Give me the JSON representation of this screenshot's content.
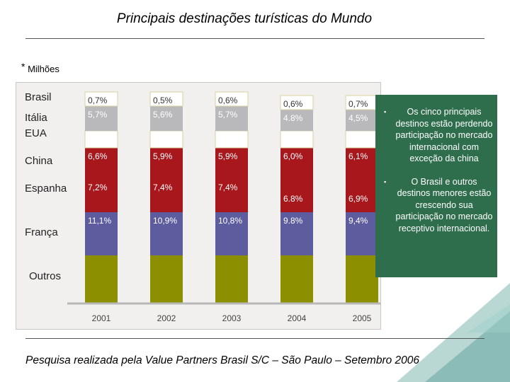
{
  "title": "Principais destinações turísticas do Mundo",
  "unit_note": {
    "star": "*",
    "text": "Milhões"
  },
  "colors": {
    "outros": "#8b8f00",
    "franca": "#5d5c9e",
    "espanha": "#a8171c",
    "china": "#a8171c",
    "eua": "#ffffff",
    "italia": "#b9b9bb",
    "brasil": "#ffffff",
    "callout_bg": "#2f6e4c",
    "axis": "#b7b7b7"
  },
  "chart_data": {
    "type": "bar",
    "stacked": true,
    "title": "Principais destinações turísticas do Mundo",
    "categories": [
      "2001",
      "2002",
      "2003",
      "2004",
      "2005"
    ],
    "series": [
      {
        "name": "Outros",
        "values": [
          null,
          null,
          null,
          null,
          null
        ]
      },
      {
        "name": "França",
        "values": [
          11.1,
          10.9,
          10.8,
          9.8,
          9.4
        ],
        "labels": [
          "11,1%",
          "10,9%",
          "10,8%",
          "9.8%",
          "9,4%"
        ]
      },
      {
        "name": "Espanha",
        "values": [
          7.2,
          7.4,
          7.4,
          6.8,
          6.9
        ],
        "labels": [
          "7,2%",
          "7,4%",
          "7,4%",
          "6.8%",
          "6,9%"
        ]
      },
      {
        "name": "China",
        "values": [
          6.6,
          5.9,
          5.9,
          6.0,
          6.1
        ],
        "labels": [
          "6,6%",
          "5,9%",
          "5,9%",
          "6,0%",
          "6,1%"
        ]
      },
      {
        "name": "EUA",
        "values": [
          null,
          null,
          null,
          null,
          null
        ]
      },
      {
        "name": "Itália",
        "values": [
          5.7,
          5.6,
          5.7,
          4.8,
          4.5
        ],
        "labels": [
          "5,7%",
          "5,6%",
          "5,7%",
          "4.8%",
          "4,5%"
        ]
      },
      {
        "name": "Brasil",
        "values": [
          0.7,
          0.5,
          0.6,
          0.6,
          0.7
        ],
        "labels": [
          "0,7%",
          "0,5%",
          "0,6%",
          "0,6%",
          "0,7%"
        ]
      }
    ],
    "legend_position": "left",
    "xlabel": "",
    "ylabel": ""
  },
  "category_labels": [
    "Brasil",
    "Itália",
    "EUA",
    "China",
    "Espanha",
    "França",
    "Outros"
  ],
  "callout": [
    "Os cinco principais destinos estão perdendo participação no mercado internacional com exceção da china",
    "O Brasil e outros destinos menores estão crescendo sua participação no mercado receptivo internacional."
  ],
  "callout_bullet": "▪",
  "source": "Pesquisa realizada pela Value Partners Brasil S/C – São Paulo – Setembro 2006"
}
